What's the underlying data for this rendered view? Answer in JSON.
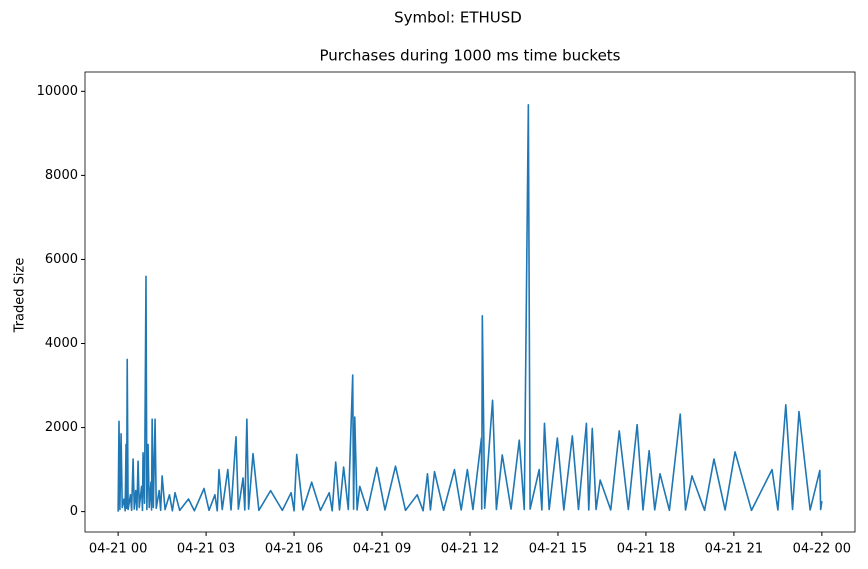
{
  "chart_data": {
    "type": "line",
    "suptitle": "Symbol: ETHUSD",
    "title": "Purchases during 1000 ms time buckets",
    "ylabel": "Traded Size",
    "color": "#1f77b4",
    "x": [
      0,
      0.03,
      0.06,
      0.1,
      0.14,
      0.2,
      0.24,
      0.27,
      0.29,
      0.31,
      0.34,
      0.42,
      0.46,
      0.51,
      0.55,
      0.6,
      0.64,
      0.68,
      0.72,
      0.8,
      0.83,
      0.85,
      0.9,
      0.95,
      0.98,
      1.02,
      1.06,
      1.12,
      1.14,
      1.16,
      1.2,
      1.26,
      1.3,
      1.4,
      1.45,
      1.5,
      1.6,
      1.75,
      1.85,
      1.94,
      2.1,
      2.4,
      2.6,
      2.93,
      3.1,
      3.3,
      3.38,
      3.44,
      3.55,
      3.74,
      3.85,
      4.02,
      4.1,
      4.26,
      4.32,
      4.39,
      4.45,
      4.6,
      4.8,
      5.2,
      5.6,
      5.9,
      6.0,
      6.09,
      6.3,
      6.6,
      6.9,
      7.2,
      7.3,
      7.42,
      7.55,
      7.69,
      7.85,
      8.0,
      8.03,
      8.07,
      8.15,
      8.24,
      8.5,
      8.82,
      9.1,
      9.46,
      9.8,
      10.2,
      10.4,
      10.55,
      10.65,
      10.79,
      11.1,
      11.47,
      11.7,
      11.91,
      12.1,
      12.39,
      12.4,
      12.42,
      12.5,
      12.77,
      12.9,
      13.1,
      13.4,
      13.68,
      13.85,
      13.99,
      14.05,
      14.36,
      14.45,
      14.54,
      14.7,
      14.98,
      15.2,
      15.49,
      15.7,
      15.97,
      16.05,
      16.17,
      16.3,
      16.44,
      16.8,
      17.09,
      17.4,
      17.7,
      17.9,
      18.11,
      18.3,
      18.48,
      18.8,
      19.17,
      19.35,
      19.57,
      20.0,
      20.32,
      20.7,
      21.04,
      21.6,
      22.3,
      22.5,
      22.77,
      23.0,
      23.22,
      23.6,
      23.93,
      23.96,
      24.0
    ],
    "values": [
      0,
      2150,
      50,
      1850,
      100,
      300,
      20,
      1600,
      80,
      3620,
      50,
      400,
      30,
      1250,
      60,
      500,
      40,
      1200,
      100,
      600,
      30,
      1400,
      200,
      5600,
      50,
      1600,
      100,
      700,
      40,
      2200,
      100,
      2200,
      80,
      500,
      30,
      850,
      50,
      400,
      20,
      450,
      30,
      300,
      20,
      550,
      30,
      400,
      20,
      1000,
      50,
      1000,
      40,
      1780,
      60,
      800,
      40,
      2200,
      60,
      1380,
      30,
      500,
      30,
      450,
      20,
      1360,
      40,
      700,
      30,
      450,
      20,
      1180,
      40,
      1060,
      50,
      3250,
      60,
      2250,
      40,
      600,
      30,
      1050,
      40,
      1080,
      30,
      400,
      20,
      900,
      40,
      950,
      30,
      1000,
      40,
      1000,
      50,
      1750,
      60,
      4660,
      80,
      2650,
      50,
      1350,
      60,
      1700,
      50,
      9680,
      60,
      1000,
      40,
      2100,
      50,
      1750,
      40,
      1800,
      50,
      2100,
      40,
      1980,
      50,
      750,
      40,
      1920,
      50,
      2070,
      40,
      1450,
      40,
      900,
      30,
      2320,
      40,
      850,
      30,
      1250,
      40,
      1420,
      30,
      1000,
      40,
      2540,
      50,
      2380,
      40,
      980,
      50,
      250
    ],
    "xlim": [
      -1.13,
      25.13
    ],
    "xticks": [
      {
        "value": 0,
        "label": "04-21 00"
      },
      {
        "value": 3,
        "label": "04-21 03"
      },
      {
        "value": 6,
        "label": "04-21 06"
      },
      {
        "value": 9,
        "label": "04-21 09"
      },
      {
        "value": 12,
        "label": "04-21 12"
      },
      {
        "value": 15,
        "label": "04-21 15"
      },
      {
        "value": 18,
        "label": "04-21 18"
      },
      {
        "value": 21,
        "label": "04-21 21"
      },
      {
        "value": 24,
        "label": "04-22 00"
      }
    ],
    "ylim": [
      -485,
      10460
    ],
    "yticks": [
      0,
      2000,
      4000,
      6000,
      8000,
      10000
    ]
  }
}
